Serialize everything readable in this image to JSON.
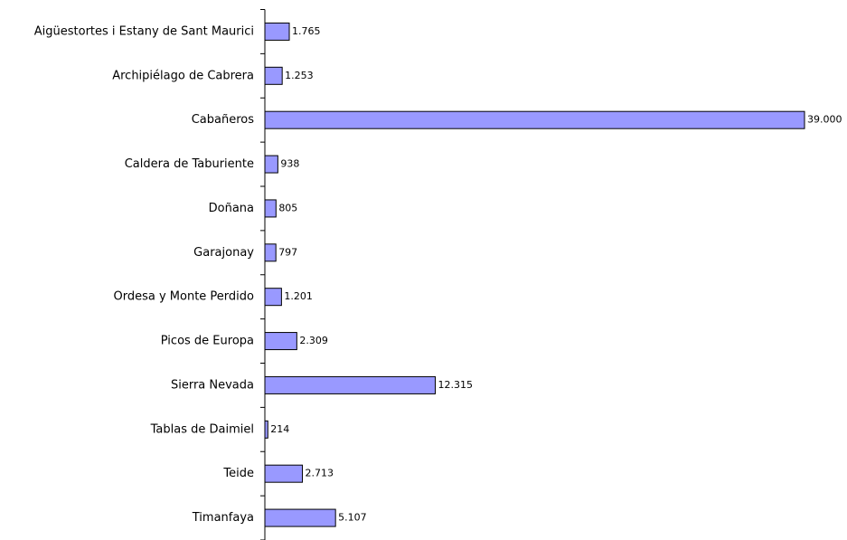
{
  "chart_data": {
    "type": "bar",
    "orientation": "horizontal",
    "categories": [
      "Aigüestortes i Estany de Sant Maurici",
      "Archipiélago de Cabrera",
      "Cabañeros",
      "Caldera de Taburiente",
      "Doñana",
      "Garajonay",
      "Ordesa y Monte Perdido",
      "Picos de Europa",
      "Sierra Nevada",
      "Tablas de Daimiel",
      "Teide",
      "Timanfaya"
    ],
    "values": [
      1765,
      1253,
      39000,
      938,
      805,
      797,
      1201,
      2309,
      12315,
      214,
      2713,
      5107
    ],
    "value_labels": [
      "1.765",
      "1.253",
      "39.000",
      "938",
      "805",
      "797",
      "1.201",
      "2.309",
      "12.315",
      "214",
      "2.713",
      "5.107"
    ],
    "color": "#9999ff",
    "xlim": [
      0,
      39000
    ]
  }
}
